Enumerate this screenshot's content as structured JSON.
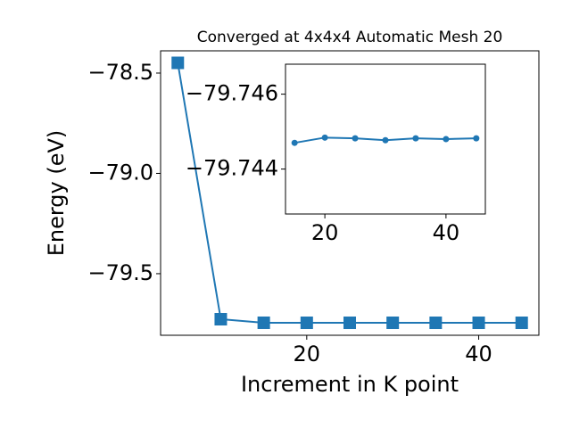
{
  "chart_data": [
    {
      "type": "line",
      "title": "Converged at 4x4x4 Automatic Mesh 20",
      "x_label": "Increment in K point",
      "y_label": "Energy (eV)",
      "x": [
        5,
        10,
        15,
        20,
        25,
        30,
        35,
        40,
        45
      ],
      "series": [
        {
          "color": "#1f77b4",
          "marker": "square",
          "values": [
            -78.449,
            -79.727,
            -79.7447,
            -79.74484,
            -79.74482,
            -79.74477,
            -79.74482,
            -79.7448,
            -79.74482
          ]
        }
      ],
      "xlim": [
        3,
        47
      ],
      "ylim": [
        -79.807,
        -78.389
      ],
      "xticks": [
        20,
        40
      ],
      "yticks": [
        {
          "value": -78.5,
          "label": "−78.5"
        },
        {
          "value": -79.0,
          "label": "−79.0"
        },
        {
          "value": -79.5,
          "label": "−79.5"
        }
      ]
    },
    {
      "type": "line",
      "x": [
        15,
        20,
        25,
        30,
        35,
        40,
        45
      ],
      "series": [
        {
          "color": "#1f77b4",
          "marker": "circle",
          "values": [
            -79.7447,
            -79.74484,
            -79.74482,
            -79.74477,
            -79.74482,
            -79.7448,
            -79.74482
          ]
        }
      ],
      "xlim": [
        13.5,
        46.5
      ],
      "ylim": [
        -79.7428,
        -79.7468
      ],
      "xticks": [
        20,
        40
      ],
      "yticks": [
        {
          "value": -79.746,
          "label": "−79.746"
        },
        {
          "value": -79.744,
          "label": "−79.744"
        }
      ]
    }
  ]
}
